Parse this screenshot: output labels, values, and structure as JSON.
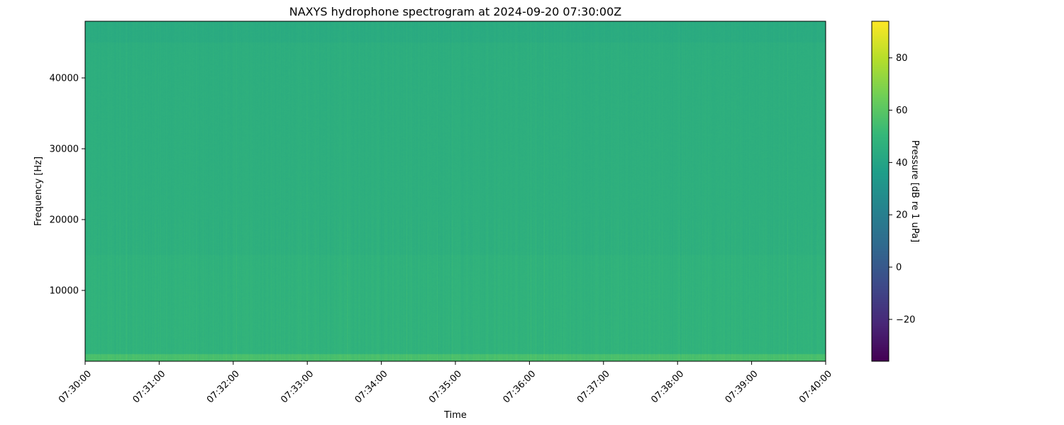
{
  "chart_data": {
    "type": "heatmap",
    "title": "NAXYS hydrophone spectrogram at 2024-09-20 07:30:00Z",
    "xlabel": "Time",
    "ylabel": "Frequency [Hz]",
    "colorbar_label": "Pressure [dB re 1 uPa]",
    "colormap": "viridis",
    "x_ticks": [
      "07:30:00",
      "07:31:00",
      "07:32:00",
      "07:33:00",
      "07:34:00",
      "07:35:00",
      "07:36:00",
      "07:37:00",
      "07:38:00",
      "07:39:00",
      "07:40:00"
    ],
    "xlim": [
      "07:30:00",
      "07:40:00"
    ],
    "y_ticks": [
      10000,
      20000,
      30000,
      40000
    ],
    "ylim": [
      0,
      48000
    ],
    "colorbar_ticks": [
      -20,
      0,
      20,
      40,
      60,
      80
    ],
    "clim": [
      -36,
      94
    ],
    "levels": {
      "typical_db": 47,
      "low_frequency_band_db": 56,
      "low_frequency_band_hz": [
        0,
        1000
      ],
      "high_frequency_band_db": 44,
      "high_frequency_band_hz": [
        45000,
        48000
      ]
    }
  }
}
